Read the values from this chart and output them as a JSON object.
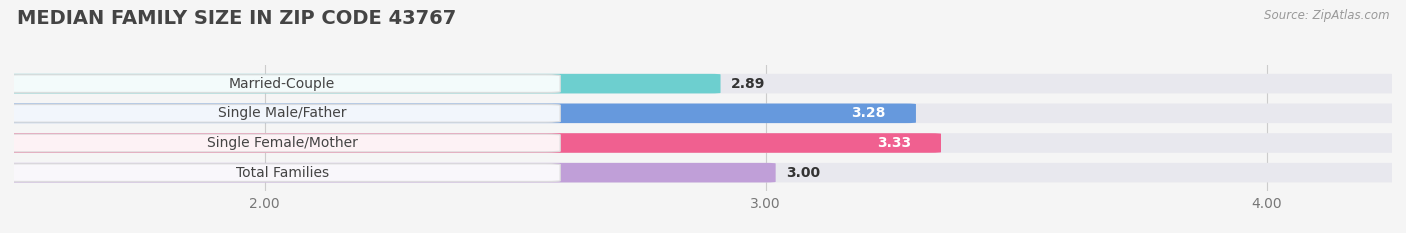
{
  "title": "MEDIAN FAMILY SIZE IN ZIP CODE 43767",
  "source": "Source: ZipAtlas.com",
  "categories": [
    "Married-Couple",
    "Single Male/Father",
    "Single Female/Mother",
    "Total Families"
  ],
  "values": [
    2.89,
    3.28,
    3.33,
    3.0
  ],
  "bar_colors": [
    "#6dcfcf",
    "#6699dd",
    "#f06090",
    "#c09fd8"
  ],
  "xlim_min": 1.5,
  "xlim_max": 4.25,
  "xticks": [
    2.0,
    3.0,
    4.0
  ],
  "xtick_labels": [
    "2.00",
    "3.00",
    "4.00"
  ],
  "label_fontsize": 10,
  "value_fontsize": 10,
  "title_fontsize": 14,
  "background_color": "#f5f5f5",
  "bar_bg_color": "#e8e8ee",
  "bar_height": 0.62,
  "value_inside_colors": [
    "#333333",
    "#ffffff",
    "#ffffff",
    "#333333"
  ],
  "value_ha": [
    "left",
    "right",
    "right",
    "left"
  ],
  "value_offsets": [
    0.04,
    -0.04,
    -0.04,
    0.04
  ]
}
